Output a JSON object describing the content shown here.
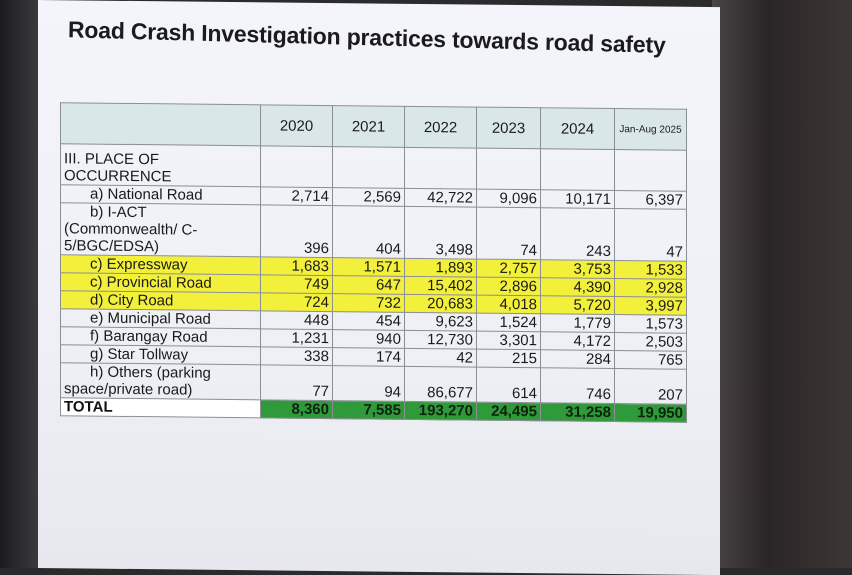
{
  "title": "Road Crash Investigation practices towards road safety",
  "columns": [
    "2020",
    "2021",
    "2022",
    "2023",
    "2024",
    "Jan-Aug 2025"
  ],
  "section": {
    "line1": "III. PLACE OF",
    "line2": "OCCURRENCE"
  },
  "rows": [
    {
      "label": [
        "a) National Road"
      ],
      "values": [
        "2,714",
        "2,569",
        "42,722",
        "9,096",
        "10,171",
        "6,397"
      ],
      "highlight": false
    },
    {
      "label": [
        "b) I-ACT",
        "(Commonwealth/ C-",
        "5/BGC/EDSA)"
      ],
      "values": [
        "396",
        "404",
        "3,498",
        "74",
        "243",
        "47"
      ],
      "highlight": false
    },
    {
      "label": [
        "c) Expressway"
      ],
      "values": [
        "1,683",
        "1,571",
        "1,893",
        "2,757",
        "3,753",
        "1,533"
      ],
      "highlight": true
    },
    {
      "label": [
        "c) Provincial Road"
      ],
      "values": [
        "749",
        "647",
        "15,402",
        "2,896",
        "4,390",
        "2,928"
      ],
      "highlight": true
    },
    {
      "label": [
        "d) City Road"
      ],
      "values": [
        "724",
        "732",
        "20,683",
        "4,018",
        "5,720",
        "3,997"
      ],
      "highlight": true
    },
    {
      "label": [
        "e) Municipal Road"
      ],
      "values": [
        "448",
        "454",
        "9,623",
        "1,524",
        "1,779",
        "1,573"
      ],
      "highlight": false
    },
    {
      "label": [
        "f) Barangay Road"
      ],
      "values": [
        "1,231",
        "940",
        "12,730",
        "3,301",
        "4,172",
        "2,503"
      ],
      "highlight": false
    },
    {
      "label": [
        "g) Star Tollway"
      ],
      "values": [
        "338",
        "174",
        "42",
        "215",
        "284",
        "765"
      ],
      "highlight": false
    },
    {
      "label": [
        "h) Others (parking",
        "space/private road)"
      ],
      "values": [
        "77",
        "94",
        "86,677",
        "614",
        "746",
        "207"
      ],
      "highlight": false
    }
  ],
  "total": {
    "label": "TOTAL",
    "values": [
      "8,360",
      "7,585",
      "193,270",
      "24,495",
      "31,258",
      "19,950"
    ]
  },
  "colors": {
    "header_bg": "#d9e7e9",
    "highlight": "#f2f03a",
    "total": "#2f9a3a"
  }
}
